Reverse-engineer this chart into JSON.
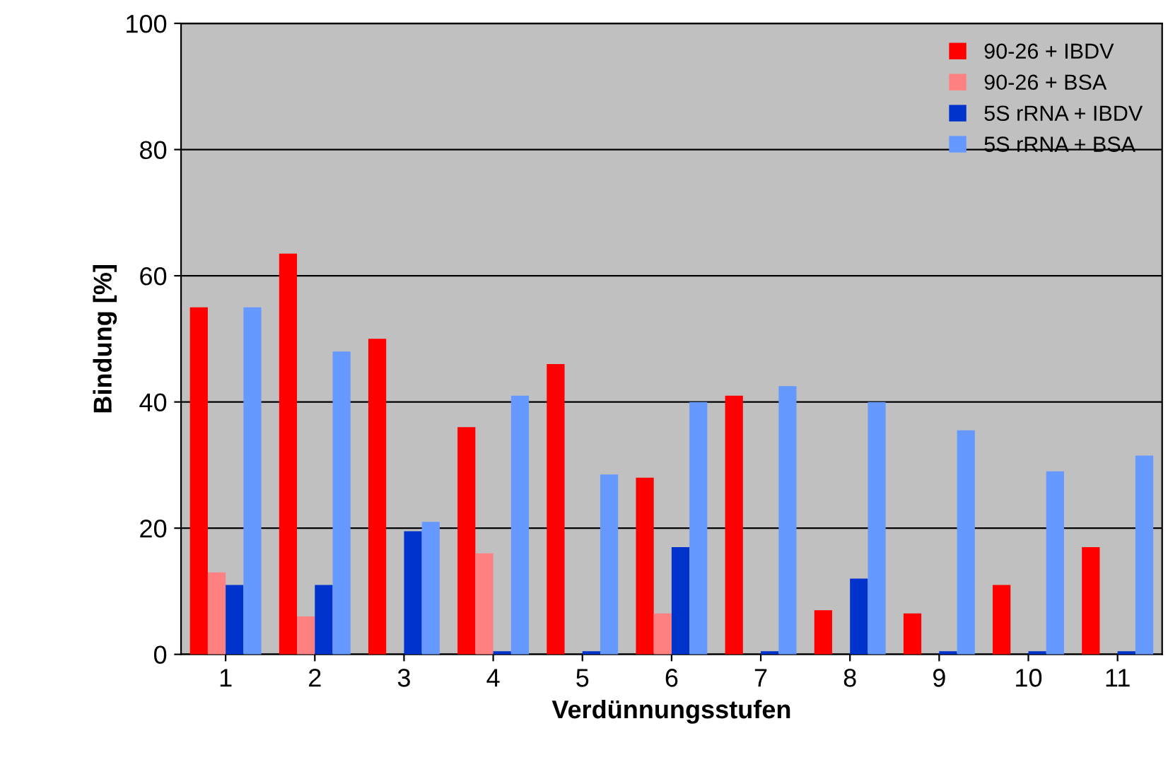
{
  "chart_data": {
    "type": "bar",
    "xlabel": "Verdünnungsstufen",
    "ylabel": "Bindung [%]",
    "categories": [
      "1",
      "2",
      "3",
      "4",
      "5",
      "6",
      "7",
      "8",
      "9",
      "10",
      "11"
    ],
    "series": [
      {
        "name": "90-26 + IBDV",
        "color": "#ff0000",
        "values": [
          55,
          63.5,
          50,
          36,
          46,
          28,
          41,
          7,
          6.5,
          11,
          17
        ]
      },
      {
        "name": "90-26 + BSA",
        "color": "#ff8080",
        "values": [
          13,
          6,
          0,
          16,
          0,
          6.5,
          0,
          0,
          0,
          0,
          0
        ]
      },
      {
        "name": "5S rRNA + IBDV",
        "color": "#0033cc",
        "values": [
          11,
          11,
          19.5,
          0.5,
          0.5,
          17,
          0.5,
          12,
          0.5,
          0.5,
          0.5
        ]
      },
      {
        "name": "5S rRNA + BSA",
        "color": "#6699ff",
        "values": [
          55,
          48,
          21,
          41,
          28.5,
          40,
          42.5,
          40,
          35.5,
          29,
          31.5
        ]
      }
    ],
    "ylim": [
      0,
      100
    ],
    "yticks": [
      0,
      20,
      40,
      60,
      80,
      100
    ],
    "grid": "y",
    "legend": "top right"
  }
}
